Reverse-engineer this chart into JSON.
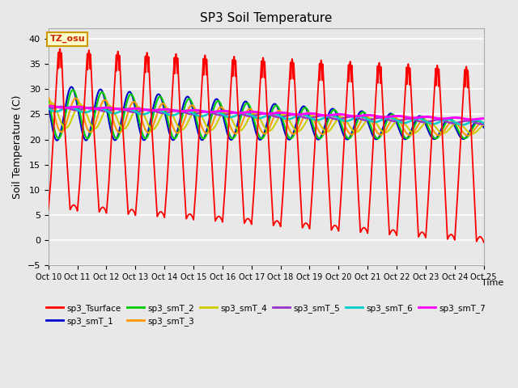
{
  "title": "SP3 Soil Temperature",
  "xlabel": "Time",
  "ylabel": "Soil Temperature (C)",
  "ylim": [
    -5,
    42
  ],
  "xlim": [
    0,
    15
  ],
  "xtick_labels": [
    "Oct 10",
    "Oct 11",
    "Oct 12",
    "Oct 13",
    "Oct 14",
    "Oct 15",
    "Oct 16",
    "Oct 17",
    "Oct 18",
    "Oct 19",
    "Oct 20",
    "Oct 21",
    "Oct 22",
    "Oct 23",
    "Oct 24",
    "Oct 25"
  ],
  "annotation_text": "TZ_osu",
  "annotation_color": "#cc2200",
  "annotation_bg": "#ffffcc",
  "annotation_border": "#cc9900",
  "background_color": "#e8e8e8",
  "grid_color": "#ffffff",
  "series_colors": {
    "sp3_Tsurface": "#ff0000",
    "sp3_smT_1": "#0000cc",
    "sp3_smT_2": "#00cc00",
    "sp3_smT_3": "#ff9900",
    "sp3_smT_4": "#cccc00",
    "sp3_smT_5": "#9933cc",
    "sp3_smT_6": "#00cccc",
    "sp3_smT_7": "#ff00ff"
  },
  "legend_entries": [
    "sp3_Tsurface",
    "sp3_smT_1",
    "sp3_smT_2",
    "sp3_smT_3",
    "sp3_smT_4",
    "sp3_smT_5",
    "sp3_smT_6",
    "sp3_smT_7"
  ]
}
